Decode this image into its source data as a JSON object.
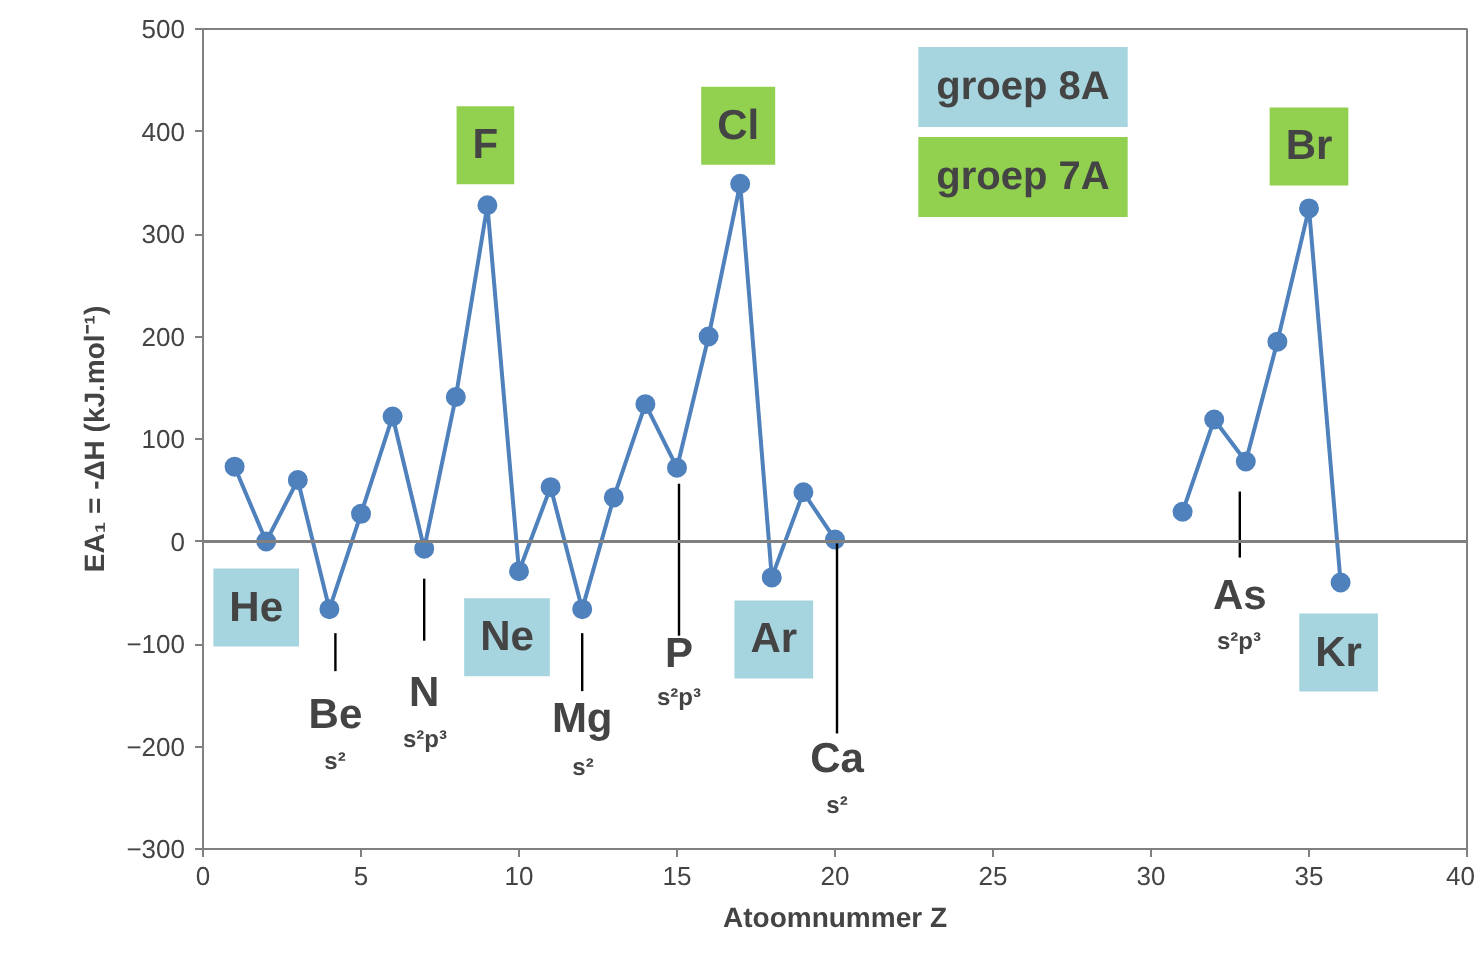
{
  "chart_data": {
    "type": "line",
    "xlabel": "Atoomnummer Z",
    "ylabel": "EA₁ = -ΔH (kJ.mol⁻¹)",
    "x": [
      1,
      2,
      3,
      4,
      5,
      6,
      7,
      8,
      9,
      10,
      11,
      12,
      13,
      14,
      15,
      16,
      17,
      18,
      19,
      20,
      21,
      22,
      23,
      24,
      25,
      26,
      27,
      28,
      29,
      30,
      31,
      32,
      33,
      34,
      35,
      36
    ],
    "series": [
      {
        "color": "#4f81bd",
        "values": [
          73,
          0,
          60,
          -66,
          27,
          122,
          -7,
          141,
          328,
          -29,
          53,
          -66,
          43,
          134,
          72,
          200,
          349,
          -35,
          48,
          2,
          null,
          null,
          null,
          null,
          null,
          null,
          null,
          null,
          null,
          null,
          29,
          119,
          78,
          195,
          325,
          -40
        ]
      }
    ],
    "xlim": [
      0,
      40
    ],
    "xticks": [
      0,
      5,
      10,
      15,
      20,
      25,
      30,
      35,
      40
    ],
    "ylim": [
      -300,
      500
    ],
    "yticks": [
      -300,
      -200,
      -100,
      0,
      100,
      200,
      300,
      400,
      500
    ],
    "grid": false,
    "marker": "circle",
    "line_style": "solid",
    "ref_lines": [
      {
        "axis": "y",
        "value": 0,
        "color": "#808080"
      }
    ],
    "annotations": [
      {
        "text": "He",
        "x": 2,
        "y": 0
      },
      {
        "text": "Be",
        "x": 4,
        "y": -66
      },
      "s²",
      {
        "text": "N",
        "x": 7,
        "y": -7
      },
      "s²p³",
      {
        "text": "Ne",
        "x": 10,
        "y": -29
      },
      {
        "text": "Mg",
        "x": 12,
        "y": -66
      },
      "s²",
      {
        "text": "P",
        "x": 15,
        "y": 72
      },
      "s²p³",
      {
        "text": "Ar",
        "x": 18,
        "y": -35
      },
      {
        "text": "Ca",
        "x": 20,
        "y": 2
      },
      "s²",
      {
        "text": "As",
        "x": 33,
        "y": 78
      },
      "s²p³",
      {
        "text": "Kr",
        "x": 36,
        "y": -40
      },
      {
        "text": "F",
        "x": 9,
        "y": 328
      },
      {
        "text": "Cl",
        "x": 17,
        "y": 349
      },
      {
        "text": "Br",
        "x": 35,
        "y": 325
      },
      "groep 8A",
      "groep 7A"
    ]
  }
}
